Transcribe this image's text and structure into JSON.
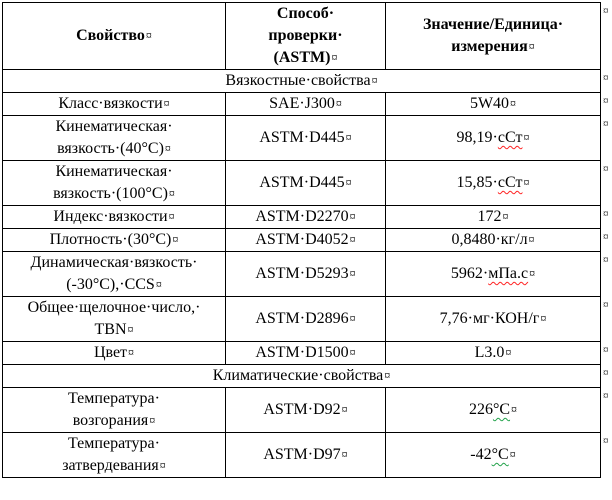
{
  "document": {
    "language": "ru",
    "formatting_marks": {
      "cell_end_mark": "¤",
      "row_end_mark": "¤",
      "space_mark": "·"
    },
    "colors": {
      "background": "#ffffff",
      "text": "#000000",
      "border": "#000000",
      "spell_error_underline": "#ff2222",
      "grammar_error_underline": "#21a24a"
    },
    "table": {
      "rows": [
        {
          "type": "header",
          "cells": [
            "Свойство",
            "Способ·\nпроверки·\n(ASTM)",
            "Значение/Единица·\nизмерения"
          ]
        },
        {
          "type": "section",
          "label": "Вязкостные·свойства"
        },
        {
          "type": "data",
          "property": "Класс·вязкости",
          "method": "SAE·J300",
          "value": [
            {
              "text": "5W40"
            }
          ]
        },
        {
          "type": "data",
          "property": "Кинематическая·\nвязкость·(40°C)",
          "method": "ASTM·D445",
          "value": [
            {
              "text": "98,19·"
            },
            {
              "text": "сСт",
              "underline": "spell"
            }
          ]
        },
        {
          "type": "data",
          "property": "Кинематическая·\nвязкость·(100°C)",
          "method": "ASTM·D445",
          "value": [
            {
              "text": "15,85·"
            },
            {
              "text": "сСт",
              "underline": "spell"
            }
          ]
        },
        {
          "type": "data",
          "property": "Индекс·вязкости",
          "method": "ASTM·D2270",
          "value": [
            {
              "text": "172"
            }
          ]
        },
        {
          "type": "data",
          "property": "Плотность·(30°C)",
          "method": "ASTM·D4052",
          "value": [
            {
              "text": "0,8480·кг/л"
            }
          ]
        },
        {
          "type": "data",
          "property": "Динамическая·вязкость·\n(-30°C),·CCS",
          "method": "ASTM·D5293",
          "value": [
            {
              "text": "5962·"
            },
            {
              "text": "мПа.с",
              "underline": "spell"
            }
          ]
        },
        {
          "type": "data",
          "property": "Общее·щелочное·число,·\nTBN",
          "method": "ASTM·D2896",
          "value": [
            {
              "text": "7,76·мг·КОН/г"
            }
          ]
        },
        {
          "type": "data",
          "property": "Цвет",
          "method": "ASTM·D1500",
          "value": [
            {
              "text": "L3.0"
            }
          ]
        },
        {
          "type": "section",
          "label": "Климатические·свойства"
        },
        {
          "type": "data",
          "property": "Температура·\nвозгорания",
          "method": "ASTM·D92",
          "value": [
            {
              "text": "226"
            },
            {
              "text": "°C",
              "underline": "grammar"
            }
          ]
        },
        {
          "type": "data",
          "property": "Температура·\nзатвердевания",
          "method": "ASTM·D97",
          "value": [
            {
              "text": "-42"
            },
            {
              "text": "°C",
              "underline": "grammar"
            }
          ]
        }
      ]
    }
  }
}
